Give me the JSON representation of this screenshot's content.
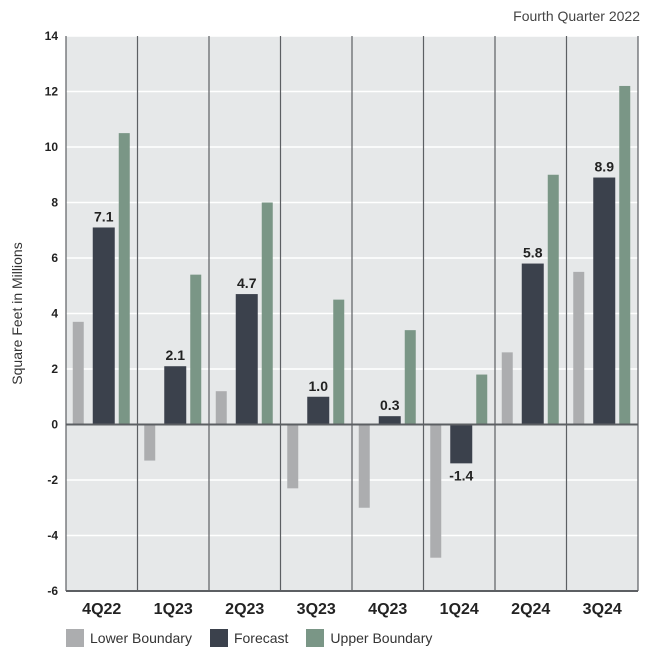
{
  "header": {
    "subtitle": "Fourth Quarter 2022"
  },
  "colors": {
    "background": "#e6e8e9",
    "lower": "#acadaf",
    "forecast": "#3b414c",
    "upper": "#7a9686",
    "grid": "#ffffff",
    "divider": "#5c5f63"
  },
  "chart_data": {
    "type": "bar",
    "title": "",
    "subtitle": "Fourth Quarter 2022",
    "xlabel": "",
    "ylabel": "Square Feet in Millions",
    "ylim": [
      -6,
      14
    ],
    "yticks": [
      14,
      12,
      10,
      8,
      6,
      4,
      2,
      0,
      -2,
      -4,
      -6
    ],
    "ytick_labels": [
      "14",
      "12",
      "10",
      "8",
      "6",
      "4",
      "2",
      "0",
      "-2",
      "-4",
      "-6"
    ],
    "grid": true,
    "legend_position": "bottom",
    "categories": [
      "4Q22",
      "1Q23",
      "2Q23",
      "3Q23",
      "4Q23",
      "1Q24",
      "2Q24",
      "3Q24"
    ],
    "series": [
      {
        "name": "Lower Boundary",
        "values": [
          3.7,
          -1.3,
          1.2,
          -2.3,
          -3.0,
          -4.8,
          2.6,
          5.5
        ]
      },
      {
        "name": "Forecast",
        "values": [
          7.1,
          2.1,
          4.7,
          1.0,
          0.3,
          -1.4,
          5.8,
          8.9
        ]
      },
      {
        "name": "Upper Boundary",
        "values": [
          10.5,
          5.4,
          8.0,
          4.5,
          3.4,
          1.8,
          9.0,
          12.2
        ]
      }
    ],
    "data_labels": [
      "7.1",
      "2.1",
      "4.7",
      "1.0",
      "0.3",
      "-1.4",
      "5.8",
      "8.9"
    ]
  }
}
